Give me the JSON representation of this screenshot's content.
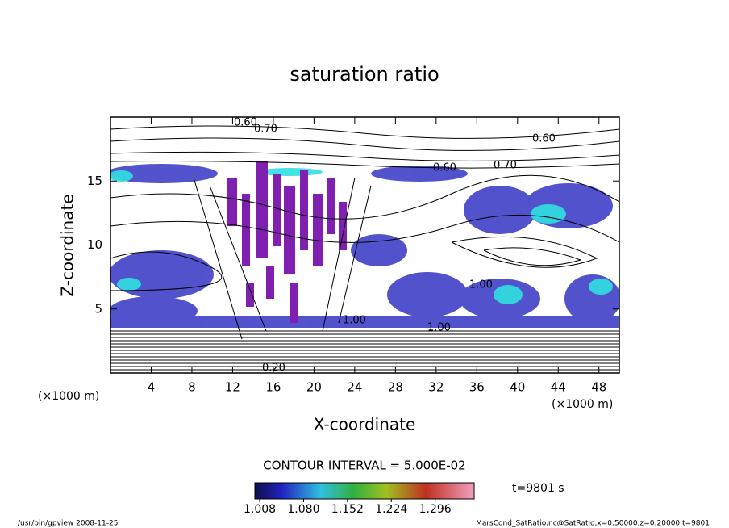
{
  "chart_data": {
    "type": "contour",
    "title": "saturation ratio",
    "xlabel": "X-coordinate",
    "ylabel": "Z-coordinate",
    "xunits": "(×1000 m)",
    "yunits": "(×1000 m)",
    "xlim": [
      0,
      50
    ],
    "ylim": [
      0,
      20
    ],
    "xticks": [
      4,
      8,
      12,
      16,
      20,
      24,
      28,
      32,
      36,
      40,
      44,
      48
    ],
    "yticks": [
      5,
      10,
      15
    ],
    "contour_labels": [
      "0.60",
      "0.70",
      "0.60",
      "0.70",
      "0.60",
      "1.00",
      "1.00",
      "1.00",
      "0.20"
    ],
    "contour_interval_text": "CONTOUR INTERVAL = 5.000E-02",
    "colorbar": {
      "clim": [
        1.0,
        1.36
      ],
      "ticks": [
        1.008,
        {
          "value": 1.08,
          "label": "1.080"
        },
        1.152,
        1.224,
        1.296
      ]
    },
    "time_label": "t=9801 s",
    "footer_left": "/usr/bin/gpview  2008-11-25",
    "footer_right": "MarsCond_SatRatio.nc@SatRatio,x=0:50000,z=0:20000,t=9801"
  }
}
